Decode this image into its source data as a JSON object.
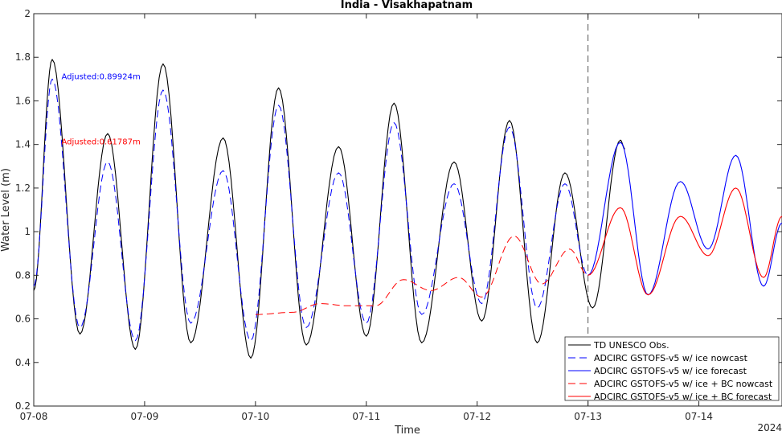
{
  "chart_data": {
    "type": "line",
    "title": "India - Visakhapatnam",
    "xlabel": "Time",
    "ylabel": "Water Level (m)",
    "year_label": "2024",
    "xlim": [
      "07-08",
      "07-14 18:00"
    ],
    "ylim": [
      0.2,
      2.0
    ],
    "x_ticks": [
      "07-08",
      "07-09",
      "07-10",
      "07-11",
      "07-12",
      "07-13",
      "07-14"
    ],
    "y_ticks": [
      "0.2",
      "0.4",
      "0.6",
      "0.8",
      "1",
      "1.2",
      "1.4",
      "1.6",
      "1.8",
      "2"
    ],
    "nowcast_forecast_divider": "07-13 00:00",
    "grid": false,
    "legend_position": "bottom-right",
    "annotations": [
      {
        "text": "Adjusted:0.89924m",
        "color": "#0000ff",
        "x": "07-08 06:00",
        "y": 1.7
      },
      {
        "text": "Adjusted:0.61787m",
        "color": "#ff0000",
        "x": "07-08 06:00",
        "y": 1.4
      }
    ],
    "series": [
      {
        "name": "TD UNESCO Obs.",
        "color": "#000000",
        "style": "solid",
        "points": [
          [
            "07-08 00:00",
            0.73
          ],
          [
            "07-08 04:00",
            1.79
          ],
          [
            "07-08 10:00",
            0.53
          ],
          [
            "07-08 16:00",
            1.45
          ],
          [
            "07-08 22:00",
            0.46
          ],
          [
            "07-09 04:00",
            1.77
          ],
          [
            "07-09 10:00",
            0.49
          ],
          [
            "07-09 17:00",
            1.43
          ],
          [
            "07-09 23:00",
            0.42
          ],
          [
            "07-10 05:00",
            1.66
          ],
          [
            "07-10 11:00",
            0.48
          ],
          [
            "07-10 18:00",
            1.39
          ],
          [
            "07-11 00:00",
            0.52
          ],
          [
            "07-11 06:00",
            1.59
          ],
          [
            "07-11 12:00",
            0.49
          ],
          [
            "07-11 19:00",
            1.32
          ],
          [
            "07-12 01:00",
            0.59
          ],
          [
            "07-12 07:00",
            1.51
          ],
          [
            "07-12 13:00",
            0.49
          ],
          [
            "07-12 19:00",
            1.27
          ],
          [
            "07-13 01:00",
            0.65
          ],
          [
            "07-13 07:00",
            1.42
          ],
          [
            "07-13 08:00",
            1.38
          ]
        ]
      },
      {
        "name": "ADCIRC GSTOFS-v5 w/ ice nowcast",
        "color": "#0000ff",
        "style": "dashed",
        "points": [
          [
            "07-08 00:00",
            0.75
          ],
          [
            "07-08 04:00",
            1.7
          ],
          [
            "07-08 10:00",
            0.56
          ],
          [
            "07-08 16:00",
            1.32
          ],
          [
            "07-08 22:00",
            0.5
          ],
          [
            "07-09 04:00",
            1.65
          ],
          [
            "07-09 10:00",
            0.58
          ],
          [
            "07-09 17:00",
            1.28
          ],
          [
            "07-09 23:00",
            0.5
          ],
          [
            "07-10 05:00",
            1.58
          ],
          [
            "07-10 11:00",
            0.56
          ],
          [
            "07-10 18:00",
            1.27
          ],
          [
            "07-11 00:00",
            0.58
          ],
          [
            "07-11 06:00",
            1.5
          ],
          [
            "07-11 12:00",
            0.62
          ],
          [
            "07-11 19:00",
            1.22
          ],
          [
            "07-12 01:00",
            0.67
          ],
          [
            "07-12 07:00",
            1.48
          ],
          [
            "07-12 13:00",
            0.65
          ],
          [
            "07-12 19:00",
            1.22
          ],
          [
            "07-13 00:00",
            0.8
          ]
        ]
      },
      {
        "name": "ADCIRC GSTOFS-v5 w/ ice forecast",
        "color": "#0000ff",
        "style": "solid",
        "points": [
          [
            "07-13 00:00",
            0.8
          ],
          [
            "07-13 07:00",
            1.41
          ],
          [
            "07-13 13:00",
            0.71
          ],
          [
            "07-13 20:00",
            1.23
          ],
          [
            "07-14 02:00",
            0.92
          ],
          [
            "07-14 08:00",
            1.35
          ],
          [
            "07-14 14:00",
            0.75
          ],
          [
            "07-14 18:00",
            1.04
          ]
        ]
      },
      {
        "name": "ADCIRC GSTOFS-v5 w/ ice + BC nowcast",
        "color": "#ff0000",
        "style": "dashed",
        "points": [
          [
            "07-10 00:00",
            0.62
          ],
          [
            "07-10 08:00",
            0.63
          ],
          [
            "07-10 14:00",
            0.67
          ],
          [
            "07-10 20:00",
            0.66
          ],
          [
            "07-11 02:00",
            0.66
          ],
          [
            "07-11 08:00",
            0.78
          ],
          [
            "07-11 14:00",
            0.73
          ],
          [
            "07-11 20:00",
            0.79
          ],
          [
            "07-12 01:00",
            0.7
          ],
          [
            "07-12 08:00",
            0.98
          ],
          [
            "07-12 14:00",
            0.76
          ],
          [
            "07-12 20:00",
            0.92
          ],
          [
            "07-13 00:00",
            0.8
          ]
        ]
      },
      {
        "name": "ADCIRC GSTOFS-v5 w/ ice + BC forecast",
        "color": "#ff0000",
        "style": "solid",
        "points": [
          [
            "07-13 00:00",
            0.8
          ],
          [
            "07-13 07:00",
            1.11
          ],
          [
            "07-13 13:00",
            0.71
          ],
          [
            "07-13 20:00",
            1.07
          ],
          [
            "07-14 02:00",
            0.89
          ],
          [
            "07-14 08:00",
            1.2
          ],
          [
            "07-14 14:00",
            0.79
          ],
          [
            "07-14 18:00",
            1.07
          ]
        ]
      }
    ]
  }
}
